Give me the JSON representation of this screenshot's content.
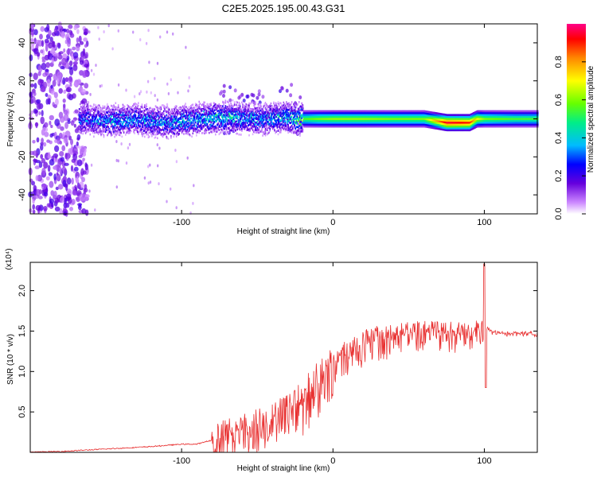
{
  "title": "C2E5.2025.195.00.43.G31",
  "chart_data": [
    {
      "type": "heatmap",
      "title": "C2E5.2025.195.00.43.G31",
      "xlabel": "Height of straight line (km)",
      "ylabel": "Frequency (Hz)",
      "xlim": [
        -200,
        135
      ],
      "ylim": [
        -50,
        50
      ],
      "x_ticks": [
        -100,
        0,
        100
      ],
      "y_ticks": [
        -40,
        -20,
        0,
        20,
        40
      ],
      "colorbar": {
        "label": "Normalized spectral amplitude",
        "range": [
          0,
          1
        ],
        "ticks": [
          0.0,
          0.2,
          0.4,
          0.6,
          0.8
        ],
        "colors": [
          "#ffffff",
          "#cc88ff",
          "#6600dd",
          "#0000ff",
          "#00bbff",
          "#00ee88",
          "#66ff00",
          "#ffff00",
          "#ff8800",
          "#ff0000",
          "#ff0088"
        ]
      },
      "ridge": {
        "x": [
          -170,
          -150,
          -130,
          -110,
          -90,
          -70,
          -50,
          -30,
          -20,
          -10,
          0,
          20,
          40,
          60,
          75,
          90,
          95,
          100,
          120,
          135
        ],
        "frequency": [
          0,
          -1,
          0,
          -2,
          0,
          1,
          0,
          1,
          0,
          0,
          0,
          0,
          0,
          0,
          -2,
          -2,
          0,
          0,
          0,
          0
        ],
        "amplitude": [
          0.3,
          0.35,
          0.35,
          0.35,
          0.4,
          0.4,
          0.35,
          0.4,
          0.55,
          0.6,
          0.62,
          0.62,
          0.6,
          0.6,
          0.95,
          0.9,
          0.7,
          0.6,
          0.55,
          0.55
        ]
      }
    },
    {
      "type": "line",
      "xlabel": "Height of straight line (km)",
      "ylabel": "SNR (10 * v/v)",
      "y_multiplier": "(x10⁴)",
      "xlim": [
        -200,
        135
      ],
      "ylim": [
        0,
        2.35
      ],
      "x_ticks": [
        -100,
        0,
        100
      ],
      "y_ticks": [
        0.5,
        1.0,
        1.5,
        2.0
      ],
      "color": "#e83030",
      "series": [
        {
          "x": [
            -200,
            -180,
            -160,
            -140,
            -120,
            -100,
            -90,
            -80,
            -70,
            -60,
            -50,
            -40,
            -30,
            -20,
            -10,
            0,
            10,
            20,
            30,
            40,
            50,
            60,
            70,
            80,
            90,
            95,
            100,
            102,
            105,
            110,
            120,
            135
          ],
          "y": [
            0.0,
            0.01,
            0.03,
            0.05,
            0.07,
            0.1,
            0.1,
            0.15,
            0.3,
            0.35,
            0.4,
            0.45,
            0.6,
            0.75,
            0.95,
            1.15,
            1.3,
            1.4,
            1.45,
            1.5,
            1.52,
            1.53,
            1.53,
            1.52,
            1.52,
            1.55,
            1.6,
            1.55,
            1.5,
            1.48,
            1.48,
            1.48
          ]
        }
      ]
    }
  ]
}
